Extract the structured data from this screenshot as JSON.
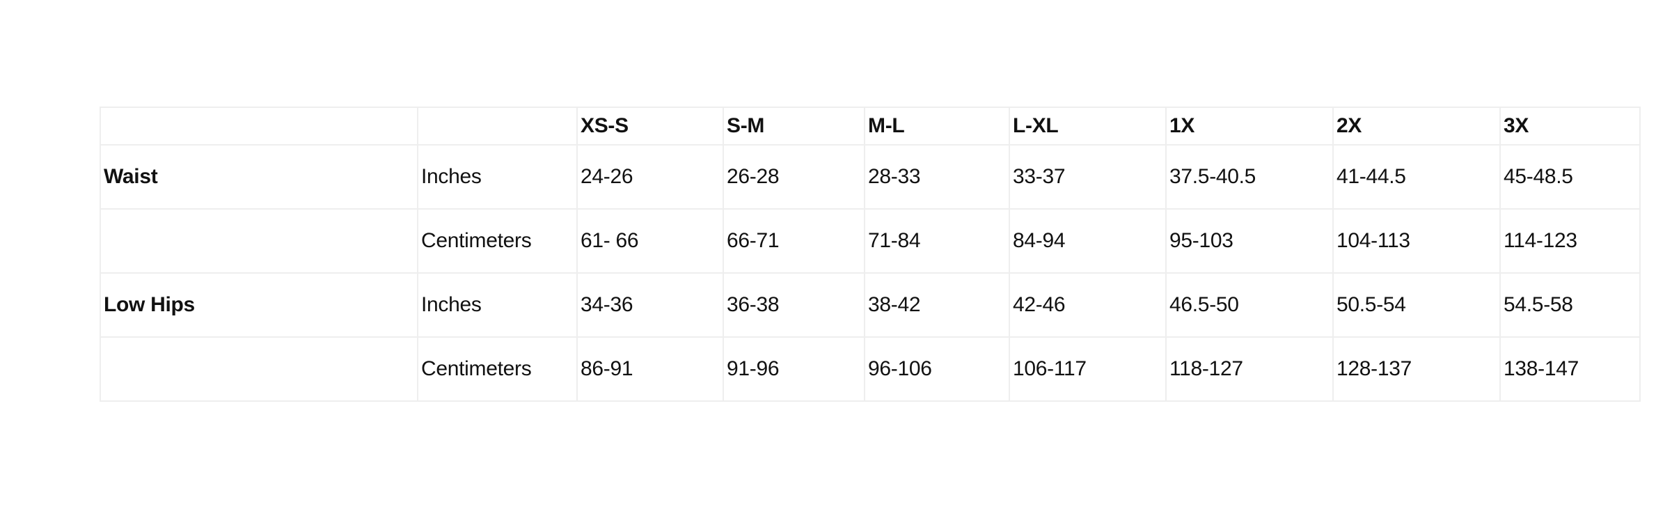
{
  "table": {
    "headers": [
      "",
      "",
      "XS-S",
      "S-M",
      "M-L",
      "L-XL",
      "1X",
      "2X",
      "3X"
    ],
    "rows": [
      {
        "label": "Waist",
        "unit": "Inches",
        "values": [
          "24-26",
          "26-28",
          "28-33",
          "33-37",
          "37.5-40.5",
          "41-44.5",
          "45-48.5"
        ]
      },
      {
        "label": "",
        "unit": "Centimeters",
        "values": [
          "61- 66",
          "66-71",
          "71-84",
          "84-94",
          "95-103",
          "104-113",
          "114-123"
        ]
      },
      {
        "label": "Low Hips",
        "unit": "Inches",
        "values": [
          "34-36",
          "36-38",
          "38-42",
          "42-46",
          "46.5-50",
          "50.5-54",
          "54.5-58"
        ]
      },
      {
        "label": "",
        "unit": "Centimeters",
        "values": [
          "86-91",
          "91-96",
          "96-106",
          "106-117",
          "118-127",
          "128-137",
          "138-147"
        ]
      }
    ]
  }
}
